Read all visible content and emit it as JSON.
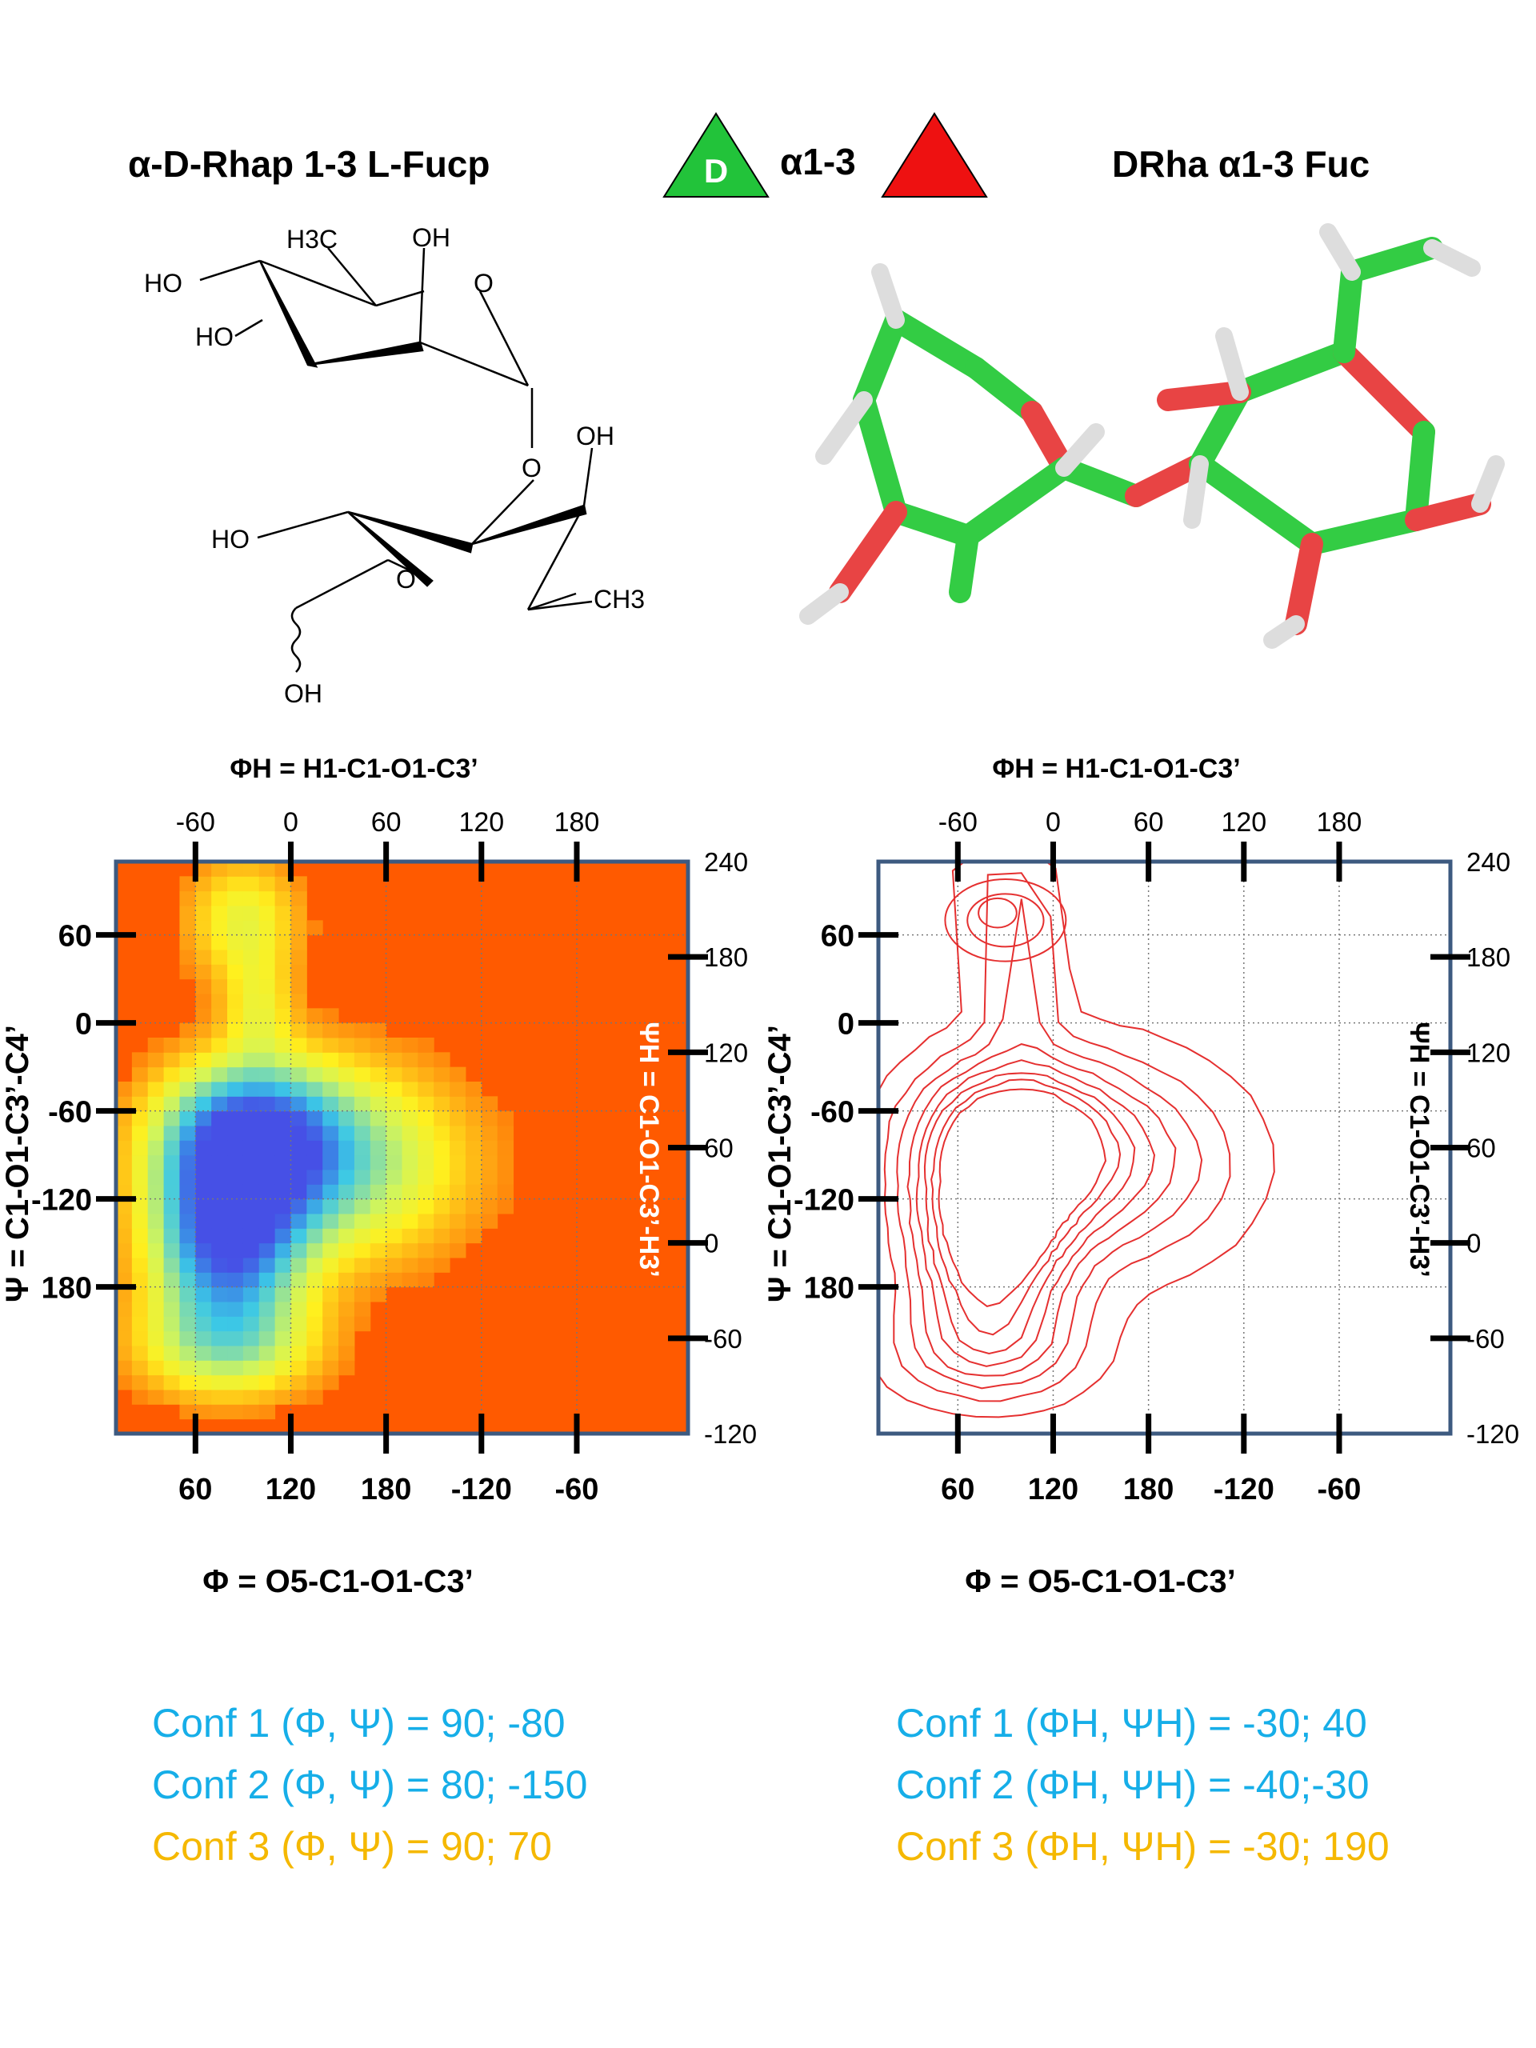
{
  "header": {
    "left_title": "α-D-Rhap  1-3  L-Fucp",
    "symbol_letter": "D",
    "linkage": "α1-3",
    "right_title": "DRha α1-3 Fuc"
  },
  "colors": {
    "green": "#22c33a",
    "red": "#ee1111",
    "plot_border": "#3d5a80",
    "map_background": "#ff5a00",
    "contour": "#e53030",
    "conf_blue": "#16aee8",
    "conf_yellow": "#f5b800"
  },
  "structure_labels": [
    "HO",
    "H3C",
    "OH",
    "O",
    "HO",
    "O",
    "OH",
    "HO",
    "O",
    "CH3",
    "OH"
  ],
  "chart_data": [
    {
      "type": "heatmap",
      "top_title": "ΦH = H1-C1-O1-C3’",
      "bottom_title": "Φ = O5-C1-O1-C3’",
      "left_title": "Ψ = C1-O1-C3’-C4’",
      "right_title": "ΨH = C1-O1-C3’-H3’",
      "top_ticks": [
        "-60",
        "0",
        "60",
        "120",
        "180"
      ],
      "bottom_ticks": [
        "60",
        "120",
        "180",
        "-120",
        "-60"
      ],
      "left_ticks": [
        "60",
        "0",
        "-60",
        "-120",
        "180"
      ],
      "right_ticks": [
        "240",
        "180",
        "120",
        "60",
        "0",
        "-60",
        "-120"
      ],
      "x_range": [
        10,
        370
      ],
      "y_range": [
        -280,
        110
      ],
      "colormap": "jet",
      "grid": true,
      "clusters": [
        {
          "phi": 92,
          "psi": -80,
          "sigma_phi": 38,
          "sigma_psi": 35,
          "weight": 1.0
        },
        {
          "phi": 80,
          "psi": -150,
          "sigma_phi": 32,
          "sigma_psi": 40,
          "weight": 1.0
        },
        {
          "phi": 150,
          "psi": -95,
          "sigma_phi": 55,
          "sigma_psi": 45,
          "weight": 0.55
        },
        {
          "phi": 80,
          "psi": -220,
          "sigma_phi": 40,
          "sigma_psi": 25,
          "weight": 0.45
        },
        {
          "phi": 90,
          "psi": 70,
          "sigma_phi": 25,
          "sigma_psi": 30,
          "weight": 0.35
        },
        {
          "phi": 100,
          "psi": 10,
          "sigma_phi": 15,
          "sigma_psi": 25,
          "weight": 0.25
        }
      ]
    },
    {
      "type": "contour",
      "top_title": "ΦH = H1-C1-O1-C3’",
      "bottom_title": "Φ = O5-C1-O1-C3’",
      "left_title": "Ψ = C1-O1-C3’-C4’",
      "right_title": "ΨH = C1-O1-C3’-H3’",
      "top_ticks": [
        "-60",
        "0",
        "60",
        "120",
        "180"
      ],
      "bottom_ticks": [
        "60",
        "120",
        "180",
        "-120",
        "-60"
      ],
      "left_ticks": [
        "60",
        "0",
        "-60",
        "-120",
        "180"
      ],
      "right_ticks": [
        "240",
        "180",
        "120",
        "60",
        "0",
        "-60",
        "-120"
      ],
      "x_range": [
        10,
        370
      ],
      "y_range": [
        -280,
        110
      ],
      "contour_levels": 8,
      "grid": true
    }
  ],
  "conformers": {
    "left": [
      {
        "label": "Conf 1 (Φ, Ψ) = 90; -80",
        "color": "blue"
      },
      {
        "label": "Conf 2 (Φ, Ψ) = 80; -150",
        "color": "blue"
      },
      {
        "label": "Conf 3 (Φ, Ψ) = 90;  70",
        "color": "yellow"
      }
    ],
    "right": [
      {
        "label": "Conf 1 (ΦH, ΨH) = -30; 40",
        "color": "blue"
      },
      {
        "label": "Conf 2 (ΦH, ΨH) = -40;-30",
        "color": "blue"
      },
      {
        "label": "Conf 3 (ΦH, ΨH) =  -30; 190",
        "color": "yellow"
      }
    ]
  }
}
